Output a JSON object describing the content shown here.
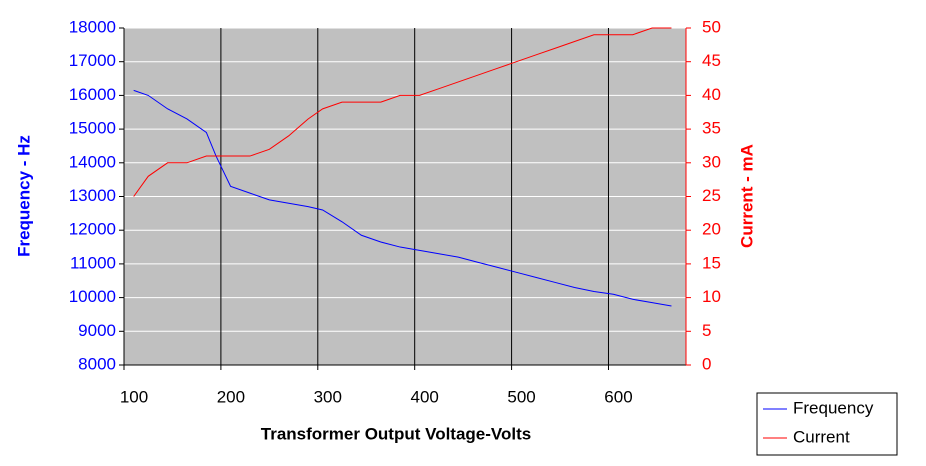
{
  "chart_data": {
    "type": "line",
    "x_label": "Transformer Output Voltage-Volts",
    "y_label": "Frequency - Hz",
    "y2_label": "Current - mA",
    "x": [
      110,
      125,
      145,
      165,
      185,
      195,
      210,
      230,
      250,
      270,
      290,
      305,
      325,
      345,
      365,
      385,
      405,
      425,
      445,
      465,
      485,
      505,
      525,
      545,
      565,
      585,
      605,
      625,
      645,
      665
    ],
    "series": [
      {
        "name": "Frequency",
        "color": "#0000ff",
        "values": [
          16150,
          16000,
          15600,
          15300,
          14900,
          14200,
          13300,
          13100,
          12900,
          12800,
          12700,
          12600,
          12250,
          11850,
          11650,
          11500,
          11400,
          11300,
          11200,
          11050,
          10900,
          10750,
          10600,
          10450,
          10300,
          10180,
          10100,
          9950,
          9850,
          9750
        ]
      },
      {
        "name": "Current",
        "color": "#ff0000",
        "axis": "y2",
        "values": [
          25,
          28,
          30,
          30,
          31,
          31,
          31,
          31,
          32,
          34,
          36.5,
          38,
          39,
          39,
          39,
          40,
          40,
          41,
          42,
          43,
          44,
          45,
          46,
          47,
          48,
          49,
          49,
          49,
          50,
          50
        ]
      }
    ],
    "xlim": [
      100,
      680
    ],
    "xticks": [
      100,
      200,
      300,
      400,
      500,
      600
    ],
    "ylim": [
      8000,
      18000
    ],
    "yticks": [
      8000,
      9000,
      10000,
      11000,
      12000,
      13000,
      14000,
      15000,
      16000,
      17000,
      18000
    ],
    "y2lim": [
      0,
      50
    ],
    "y2ticks": [
      0,
      5,
      10,
      15,
      20,
      25,
      30,
      35,
      40,
      45,
      50
    ],
    "plot_background": "#c0c0c0",
    "grid_color": "#ffffff",
    "x_grid_color": "#000000",
    "legend": "lower right"
  }
}
